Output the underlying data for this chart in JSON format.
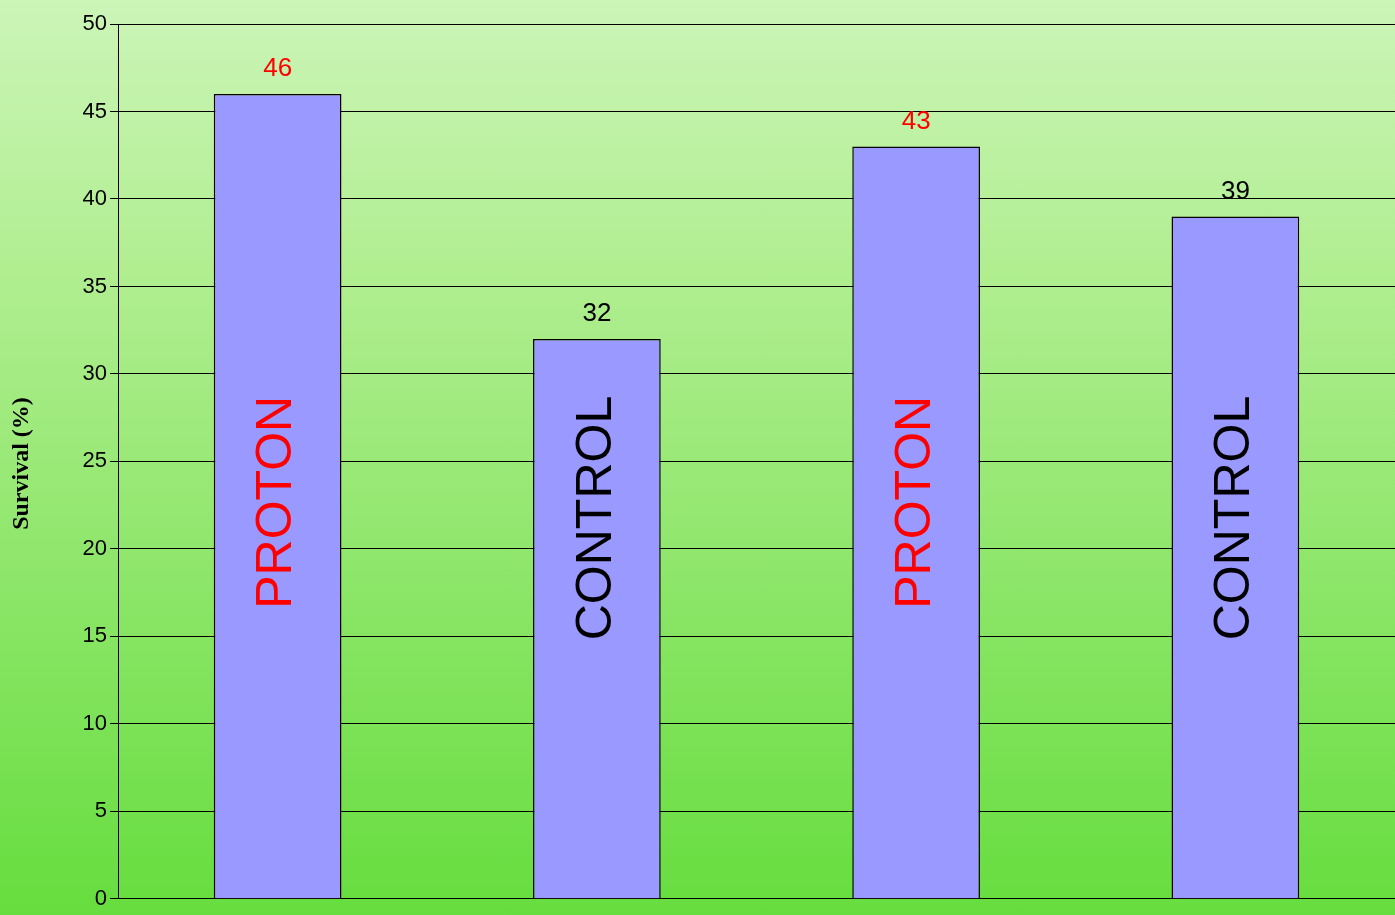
{
  "chart_data": {
    "type": "bar",
    "ylabel": "Survival (%)",
    "categories": [
      "PROTON",
      "CONTROL",
      "PROTON",
      "CONTROL"
    ],
    "values": [
      46,
      32,
      43,
      39
    ],
    "color": "#9999ff",
    "ylim": [
      0,
      50
    ],
    "yticks": [
      0,
      5,
      10,
      15,
      20,
      25,
      30,
      35,
      40,
      45,
      50
    ],
    "grid": "y",
    "legend": false,
    "data_labels": true,
    "tick_labels": "y"
  }
}
